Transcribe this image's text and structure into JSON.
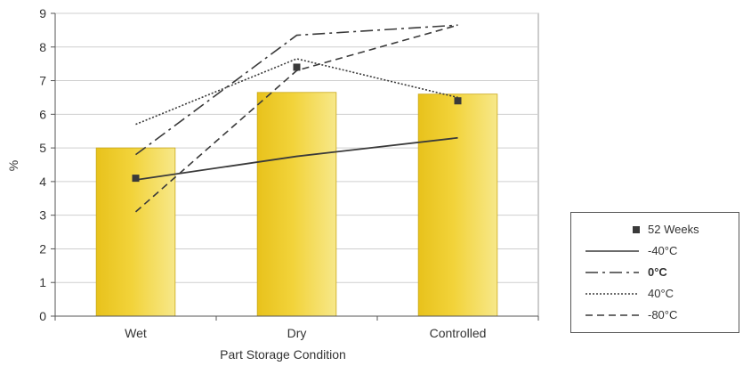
{
  "chart_data": {
    "type": "bar",
    "title": "",
    "xlabel": "Part Storage Condition",
    "ylabel": "%",
    "categories": [
      "Wet",
      "Dry",
      "Controlled"
    ],
    "ylim": [
      0,
      9
    ],
    "yticks": [
      0,
      1,
      2,
      3,
      4,
      5,
      6,
      7,
      8,
      9
    ],
    "grid": true,
    "legend_position": "right",
    "bars": {
      "values": [
        5.0,
        6.65,
        6.6
      ],
      "color": "#f2d33a"
    },
    "series": [
      {
        "name": "52 Weeks",
        "kind": "marker",
        "values": [
          4.1,
          7.4,
          6.4
        ],
        "color": "#3a3a3a"
      },
      {
        "name": "-40°C",
        "kind": "line",
        "style": "solid",
        "values": [
          4.05,
          4.75,
          5.3
        ],
        "color": "#3a3a3a"
      },
      {
        "name": "0°C",
        "kind": "line",
        "style": "dashdot",
        "values": [
          4.8,
          8.35,
          8.65
        ],
        "color": "#3a3a3a"
      },
      {
        "name": "40°C",
        "kind": "line",
        "style": "dotted",
        "values": [
          5.7,
          7.65,
          6.5
        ],
        "color": "#3a3a3a"
      },
      {
        "name": "-80°C",
        "kind": "line",
        "style": "dashed",
        "values": [
          3.1,
          7.3,
          8.65
        ],
        "color": "#3a3a3a"
      }
    ]
  }
}
